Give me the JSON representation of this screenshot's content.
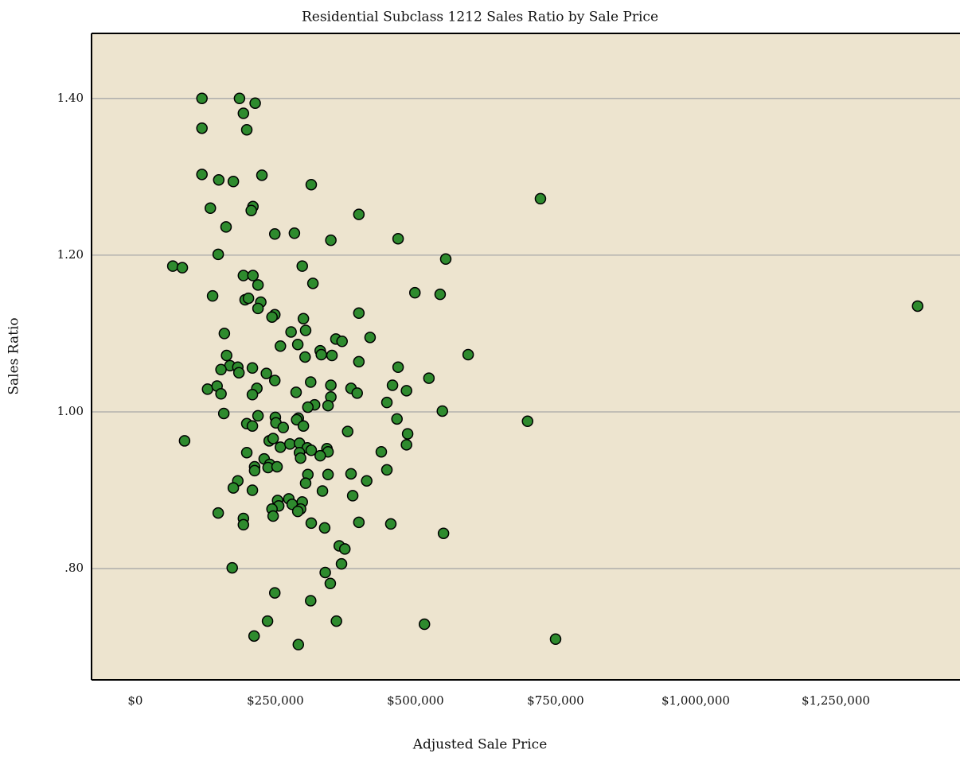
{
  "chart_data": {
    "type": "scatter",
    "title": "Residential Subclass 1212 Sales Ratio by Sale Price",
    "x_label": "Adjusted Sale Price",
    "y_label": "Sales Ratio",
    "color": "#2e8b2e",
    "grid": true,
    "xlim": [
      -78000,
      1471600
    ],
    "ylim": [
      0.658,
      1.483
    ],
    "xticks": [
      {
        "value": 0,
        "label": "$0"
      },
      {
        "value": 250000,
        "label": "$250,000"
      },
      {
        "value": 500000,
        "label": "$500,000"
      },
      {
        "value": 750000,
        "label": "$750,000"
      },
      {
        "value": 1000000,
        "label": "$1,000,000"
      },
      {
        "value": 1250000,
        "label": "$1,250,000"
      }
    ],
    "yticks": [
      {
        "value": 0.8,
        "label": ".80"
      },
      {
        "value": 1.0,
        "label": "1.00"
      },
      {
        "value": 1.2,
        "label": "1.20"
      },
      {
        "value": 1.4,
        "label": "1.40"
      }
    ],
    "x": [
      119000,
      186000,
      214000,
      193000,
      119000,
      199000,
      119000,
      149000,
      175000,
      226000,
      314000,
      210000,
      134000,
      207000,
      399000,
      723000,
      162000,
      249000,
      284000,
      349000,
      469000,
      554000,
      148000,
      67000,
      84000,
      298000,
      193000,
      210000,
      219000,
      317000,
      138000,
      196000,
      202000,
      224000,
      219000,
      249000,
      244000,
      300000,
      399000,
      499000,
      544000,
      1396000,
      159000,
      278000,
      304000,
      419000,
      358000,
      369000,
      259000,
      290000,
      330000,
      332000,
      351000,
      303000,
      163000,
      594000,
      399000,
      169000,
      153000,
      183000,
      209000,
      185000,
      234000,
      469000,
      524000,
      249000,
      313000,
      129000,
      146000,
      153000,
      217000,
      209000,
      287000,
      349000,
      385000,
      396000,
      459000,
      484000,
      349000,
      320000,
      308000,
      344000,
      449000,
      548000,
      158000,
      219000,
      250000,
      291000,
      288000,
      467000,
      700000,
      88000,
      199000,
      209000,
      251000,
      264000,
      300000,
      486000,
      379000,
      239000,
      246000,
      259000,
      276000,
      293000,
      307000,
      314000,
      342000,
      344000,
      293000,
      484000,
      199000,
      295000,
      330000,
      439000,
      230000,
      240000,
      237000,
      213000,
      253000,
      213000,
      449000,
      308000,
      344000,
      385000,
      413000,
      183000,
      304000,
      175000,
      209000,
      334000,
      388000,
      254000,
      298000,
      274000,
      280000,
      256000,
      244000,
      295000,
      290000,
      148000,
      246000,
      193000,
      193000,
      314000,
      399000,
      456000,
      338000,
      550000,
      364000,
      374000,
      173000,
      368000,
      339000,
      348000,
      249000,
      313000,
      236000,
      359000,
      516000,
      212000,
      750000,
      291000
    ],
    "values": [
      1.4,
      1.4,
      1.394,
      1.381,
      1.362,
      1.36,
      1.303,
      1.296,
      1.294,
      1.302,
      1.29,
      1.262,
      1.26,
      1.257,
      1.252,
      1.272,
      1.236,
      1.227,
      1.228,
      1.219,
      1.221,
      1.195,
      1.201,
      1.186,
      1.184,
      1.186,
      1.174,
      1.174,
      1.162,
      1.164,
      1.148,
      1.143,
      1.145,
      1.14,
      1.132,
      1.124,
      1.121,
      1.119,
      1.126,
      1.152,
      1.15,
      1.135,
      1.1,
      1.102,
      1.104,
      1.095,
      1.093,
      1.09,
      1.084,
      1.086,
      1.078,
      1.073,
      1.072,
      1.07,
      1.072,
      1.073,
      1.064,
      1.059,
      1.054,
      1.057,
      1.056,
      1.05,
      1.049,
      1.057,
      1.043,
      1.04,
      1.038,
      1.029,
      1.033,
      1.023,
      1.03,
      1.022,
      1.025,
      1.034,
      1.03,
      1.024,
      1.034,
      1.027,
      1.019,
      1.009,
      1.006,
      1.008,
      1.012,
      1.001,
      0.998,
      0.995,
      0.993,
      0.992,
      0.99,
      0.991,
      0.988,
      0.963,
      0.985,
      0.982,
      0.986,
      0.98,
      0.982,
      0.972,
      0.975,
      0.963,
      0.966,
      0.955,
      0.959,
      0.96,
      0.954,
      0.951,
      0.953,
      0.949,
      0.948,
      0.958,
      0.948,
      0.941,
      0.944,
      0.949,
      0.94,
      0.933,
      0.929,
      0.93,
      0.93,
      0.925,
      0.926,
      0.92,
      0.92,
      0.921,
      0.912,
      0.912,
      0.909,
      0.903,
      0.9,
      0.899,
      0.893,
      0.887,
      0.885,
      0.889,
      0.882,
      0.88,
      0.876,
      0.876,
      0.873,
      0.871,
      0.867,
      0.864,
      0.856,
      0.858,
      0.859,
      0.857,
      0.852,
      0.845,
      0.829,
      0.825,
      0.801,
      0.806,
      0.795,
      0.781,
      0.769,
      0.759,
      0.733,
      0.733,
      0.729,
      0.714,
      0.71,
      0.703
    ]
  }
}
